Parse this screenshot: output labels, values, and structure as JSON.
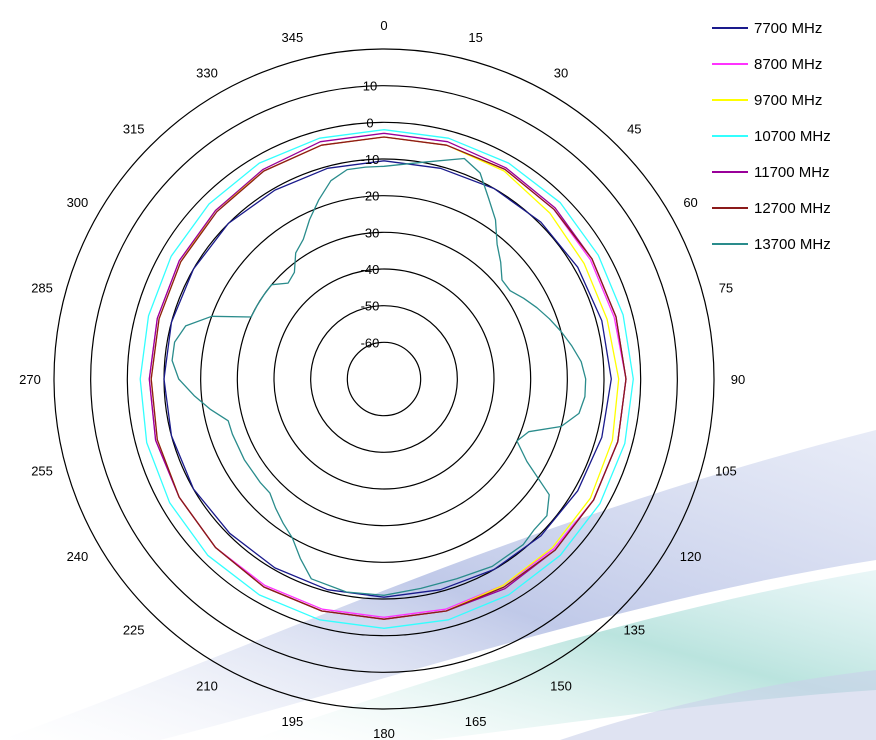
{
  "chart_data": {
    "type": "polar-line",
    "title": "",
    "angle_unit": "degrees",
    "angle_direction": "clockwise from top",
    "angle_ticks": [
      "0",
      "15",
      "30",
      "45",
      "60",
      "75",
      "90",
      "105",
      "120",
      "135",
      "150",
      "165",
      "180",
      "195",
      "210",
      "225",
      "240",
      "255",
      "270",
      "285",
      "300",
      "315",
      "330",
      "345"
    ],
    "radial_range": [
      -70,
      20
    ],
    "radial_ticks": [
      "10",
      "0",
      "-10",
      "-20",
      "-30",
      "-40",
      "-50",
      "-60"
    ],
    "legend_position": "top-right",
    "series": [
      {
        "name": "7700 MHz",
        "color": "#1a1a8c",
        "angles": [
          0,
          15,
          30,
          45,
          60,
          75,
          90,
          105,
          120,
          135,
          150,
          165,
          180,
          195,
          210,
          225,
          240,
          255,
          270,
          285,
          300,
          315,
          330,
          345
        ],
        "values": [
          -10.5,
          -10.5,
          -10,
          -9.5,
          -9,
          -8.5,
          -8,
          -8.5,
          -9,
          -9.5,
          -10,
          -10.5,
          -10.5,
          -10.5,
          -10.5,
          -10.5,
          -10,
          -10,
          -10,
          -10,
          -10,
          -10,
          -10.5,
          -10.5
        ]
      },
      {
        "name": "8700 MHz",
        "color": "#ff33ff",
        "angles": [
          0,
          15,
          30,
          45,
          60,
          75,
          90,
          105,
          120,
          135,
          150,
          165,
          180,
          195,
          210,
          225,
          240,
          255,
          270,
          285,
          300,
          315,
          330,
          345
        ],
        "values": [
          -4,
          -4,
          -4,
          -4.5,
          -5,
          -5,
          -4,
          -4,
          -4,
          -4.5,
          -5,
          -5,
          -5,
          -5,
          -5,
          -5,
          -5.5,
          -5.5,
          -6,
          -6,
          -5.5,
          -5,
          -4.5,
          -4
        ]
      },
      {
        "name": "9700 MHz",
        "color": "#ffff00",
        "angles": [
          0,
          15,
          30,
          45,
          60,
          75,
          90,
          105,
          120,
          135,
          150,
          165,
          180,
          195,
          210,
          225,
          240,
          255,
          270,
          285,
          300,
          315,
          330,
          345
        ],
        "values": [
          -4,
          -4,
          -4.5,
          -6,
          -7,
          -7,
          -6,
          -5.5,
          -5,
          -5,
          -5,
          -4.5,
          -4.5,
          -4.5,
          -4.5,
          -5,
          -5.5,
          -6,
          -6.5,
          -6.5,
          -6,
          -5,
          -4.5,
          -4
        ]
      },
      {
        "name": "10700 MHz",
        "color": "#33ffff",
        "angles": [
          0,
          15,
          30,
          45,
          60,
          75,
          90,
          105,
          120,
          135,
          150,
          165,
          180,
          195,
          210,
          225,
          240,
          255,
          270,
          285,
          300,
          315,
          330,
          345
        ],
        "values": [
          -2,
          -2,
          -2,
          -2,
          -2.5,
          -2.5,
          -2,
          -2,
          -2,
          -2,
          -2,
          -2,
          -2,
          -2,
          -2,
          -2,
          -2.5,
          -3,
          -3.5,
          -3.5,
          -3,
          -2.5,
          -2,
          -2
        ]
      },
      {
        "name": "11700 MHz",
        "color": "#990099",
        "angles": [
          0,
          15,
          30,
          45,
          60,
          75,
          90,
          105,
          120,
          135,
          150,
          165,
          180,
          195,
          210,
          225,
          240,
          255,
          270,
          285,
          300,
          315,
          330,
          345
        ],
        "values": [
          -3,
          -3,
          -3.5,
          -4,
          -4.5,
          -4.5,
          -4,
          -4,
          -4,
          -4,
          -4,
          -4.5,
          -4.5,
          -4.5,
          -4.5,
          -5,
          -5.5,
          -5.5,
          -6,
          -6,
          -5.5,
          -5,
          -4,
          -3
        ]
      },
      {
        "name": "12700 MHz",
        "color": "#8b1a1a",
        "angles": [
          0,
          15,
          30,
          45,
          60,
          75,
          90,
          105,
          120,
          135,
          150,
          165,
          180,
          195,
          210,
          225,
          240,
          255,
          270,
          285,
          300,
          315,
          330,
          345
        ],
        "values": [
          -4,
          -4,
          -4,
          -4.5,
          -4.5,
          -4.5,
          -4,
          -4,
          -4,
          -4,
          -4.5,
          -4.5,
          -4.5,
          -4.5,
          -4.5,
          -5,
          -5.5,
          -6,
          -6.5,
          -6.5,
          -6,
          -5.5,
          -4.5,
          -4
        ]
      },
      {
        "name": "13700 MHz",
        "color": "#2a8c8c",
        "angles": [
          0,
          10,
          20,
          25,
          30,
          35,
          40,
          45,
          50,
          55,
          60,
          65,
          70,
          75,
          80,
          85,
          90,
          95,
          100,
          105,
          110,
          115,
          120,
          125,
          130,
          135,
          140,
          150,
          160,
          170,
          180,
          190,
          200,
          205,
          210,
          215,
          220,
          225,
          230,
          240,
          250,
          255,
          260,
          265,
          270,
          275,
          280,
          285,
          290,
          295,
          300,
          305,
          310,
          315,
          320,
          325,
          330,
          335,
          340,
          345,
          350,
          355
        ],
        "values": [
          -12,
          -10,
          -6,
          -8,
          -13,
          -17,
          -22,
          -25,
          -28,
          -28,
          -26,
          -24,
          -22,
          -20,
          -18,
          -16,
          -15,
          -15,
          -16,
          -20,
          -28,
          -30,
          -25,
          -15,
          -12,
          -12,
          -11,
          -11,
          -12,
          -12,
          -11,
          -11,
          -12,
          -16,
          -20,
          -22,
          -24,
          -26,
          -26,
          -26,
          -26,
          -26,
          -22,
          -18,
          -14,
          -12,
          -12,
          -14,
          -20,
          -30,
          -30,
          -30,
          -30,
          -33,
          -32,
          -28,
          -26,
          -22,
          -18,
          -14,
          -12,
          -12
        ]
      }
    ]
  }
}
